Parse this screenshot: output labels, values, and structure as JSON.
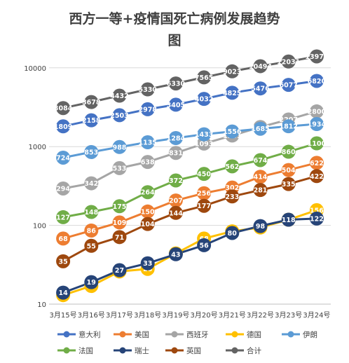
{
  "chart_data": {
    "type": "line",
    "title_line1": "西方一等+疫情国死亡病例发展趋势",
    "title_line2": "图",
    "y_scale": "log",
    "ylim": [
      10,
      15000
    ],
    "y_ticks": [
      "10",
      "100",
      "1000",
      "10000"
    ],
    "y_tick_values": [
      10,
      100,
      1000,
      10000
    ],
    "grid": true,
    "legend_position": "bottom",
    "categories": [
      "3月15号",
      "3月16号",
      "3月17号",
      "3月18号",
      "3月19号",
      "3月20号",
      "3月21号",
      "3月22号",
      "3月23号",
      "3月24号"
    ],
    "series": [
      {
        "name": "意大利",
        "color": "#4472C4",
        "values": [
          1809,
          2158,
          2503,
          2978,
          3405,
          4032,
          4825,
          5476,
          6077,
          6820
        ]
      },
      {
        "name": "美国",
        "color": "#ED7D31",
        "values": [
          68,
          86,
          109,
          150,
          207,
          256,
          302,
          414,
          504,
          622
        ]
      },
      {
        "name": "西班牙",
        "color": "#A5A5A5",
        "values": [
          294,
          342,
          533,
          638,
          831,
          1093,
          1381,
          1772,
          2207,
          2800
        ]
      },
      {
        "name": "德国",
        "color": "#FFC000",
        "values": [
          13,
          17,
          26,
          28,
          44,
          68,
          84,
          94,
          118,
          156
        ]
      },
      {
        "name": "伊朗",
        "color": "#5B9BD5",
        "values": [
          724,
          853,
          988,
          1135,
          1284,
          1433,
          1556,
          1685,
          1812,
          1934
        ]
      },
      {
        "name": "法国",
        "color": "#70AD47",
        "values": [
          127,
          148,
          175,
          264,
          372,
          450,
          562,
          674,
          860,
          1100
        ]
      },
      {
        "name": "瑞士",
        "color": "#264478",
        "values": [
          14,
          19,
          27,
          33,
          43,
          56,
          80,
          98,
          118,
          122
        ]
      },
      {
        "name": "英国",
        "color": "#9E480E",
        "values": [
          35,
          55,
          71,
          104,
          144,
          177,
          233,
          281,
          335,
          422
        ]
      },
      {
        "name": "合计",
        "color": "#636363",
        "values": [
          3084,
          3678,
          4432,
          5330,
          6330,
          7565,
          9023,
          10494,
          12031,
          13976
        ]
      }
    ],
    "data_labels": [
      {
        "series": 0,
        "texts": [
          "1809",
          "2158",
          "2503",
          "2978",
          "3405",
          "4032",
          "4825",
          "5476",
          "6077",
          "6820"
        ]
      },
      {
        "series": 1,
        "texts": [
          "68",
          "86",
          "109",
          "150",
          "207",
          "256",
          "302",
          "414",
          "504",
          "622"
        ]
      },
      {
        "series": 2,
        "texts": [
          "294",
          "342",
          "533",
          "638",
          "831",
          "1093",
          "1381",
          "1772",
          "2207",
          "2800"
        ]
      },
      {
        "series": 3,
        "texts": [
          "13",
          "17",
          "26",
          "28",
          "44",
          "68",
          "84",
          "94",
          "118",
          "156"
        ]
      },
      {
        "series": 4,
        "texts": [
          "724",
          "853",
          "988",
          "1135",
          "1284",
          "1433",
          "1556",
          "1685",
          "1812",
          "1934"
        ]
      },
      {
        "series": 5,
        "texts": [
          "127",
          "148",
          "175",
          "264",
          "372",
          "450",
          "562",
          "674",
          "860",
          "1100"
        ]
      },
      {
        "series": 6,
        "texts": [
          "14",
          "19",
          "27",
          "33",
          "43",
          "56",
          "80",
          "98",
          "118",
          "122"
        ]
      },
      {
        "series": 7,
        "texts": [
          "35",
          "55",
          "71",
          "104",
          "144",
          "177",
          "233",
          "281",
          "335",
          "422"
        ]
      },
      {
        "series": 8,
        "texts": [
          "3084",
          "3678",
          "4432",
          "5330",
          "6330",
          "7565",
          "9023",
          "10494",
          "12031",
          "13976"
        ]
      }
    ]
  }
}
